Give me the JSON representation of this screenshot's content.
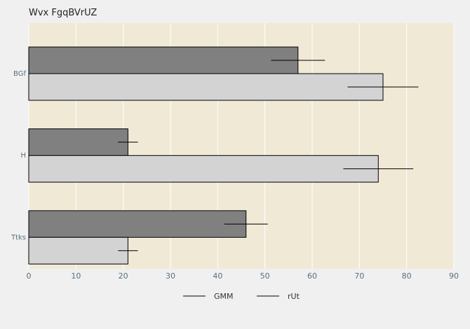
{
  "chart_data": {
    "type": "bar",
    "orientation": "horizontal",
    "title": "Wvx FgqBVrUZ",
    "xlabel": "",
    "ylabel": "",
    "xlim": [
      0,
      90
    ],
    "xticks": [
      0,
      10,
      20,
      30,
      40,
      50,
      60,
      70,
      80,
      90
    ],
    "grid": true,
    "legend_position": "bottom",
    "categories": [
      "BGf",
      "H",
      "Ttks"
    ],
    "series": [
      {
        "name": "GMM",
        "values": [
          57,
          21,
          46
        ],
        "errors": [
          5.7,
          2.1,
          4.6
        ],
        "color": "#808080"
      },
      {
        "name": "rUt",
        "values": [
          75,
          74,
          21
        ],
        "errors": [
          7.5,
          7.4,
          2.1
        ],
        "color": "#d3d3d3"
      }
    ],
    "plot_background": "#f0e9d6",
    "grid_color": "#ffffff"
  }
}
